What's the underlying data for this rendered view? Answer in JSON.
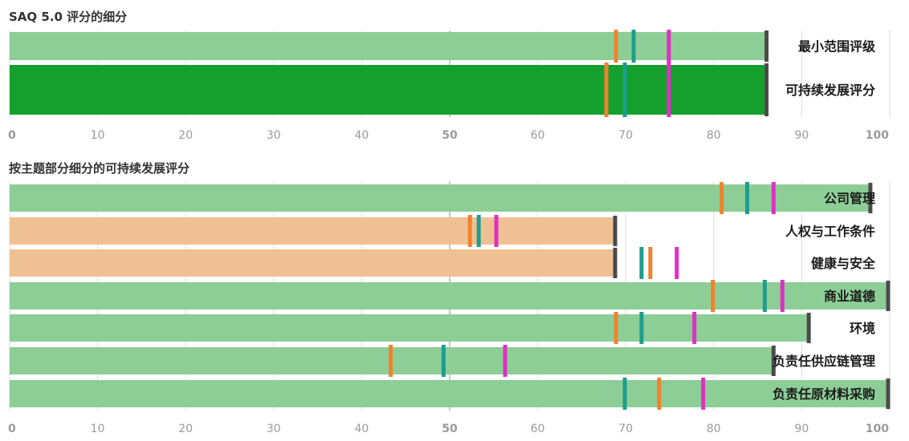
{
  "chart_data": [
    {
      "type": "bar",
      "title": "SAQ 5.0 评分的细分",
      "orientation": "horizontal",
      "xlim": [
        0,
        100
      ],
      "ticks": [
        0,
        10,
        20,
        30,
        40,
        50,
        60,
        70,
        80,
        90,
        100
      ],
      "grid": true,
      "categories": [
        "最小范围评级",
        "可持续发展评分"
      ],
      "values": [
        86,
        86
      ],
      "bar_colors": [
        "#8dce96",
        "#15a02e"
      ],
      "markers": [
        {
          "orange": 68.9,
          "teal": 70.9,
          "magenta": 74.9
        },
        {
          "orange": 67.8,
          "teal": 69.9,
          "magenta": 74.9
        }
      ],
      "marker_colors": {
        "orange": "#f0822e",
        "teal": "#1e9c8e",
        "magenta": "#df2fc4",
        "end": "#4a4a4a"
      }
    },
    {
      "type": "bar",
      "title": "按主题部分细分的可持续发展评分",
      "orientation": "horizontal",
      "xlim": [
        0,
        100
      ],
      "ticks": [
        0,
        10,
        20,
        30,
        40,
        50,
        60,
        70,
        80,
        90,
        100
      ],
      "grid": true,
      "categories": [
        "公司管理",
        "人权与工作条件",
        "健康与安全",
        "商业道德",
        "环境",
        "负责任供应链管理",
        "负责任原材料采购"
      ],
      "values": [
        97.8,
        68.8,
        68.8,
        100,
        90.8,
        86.8,
        100
      ],
      "bar_colors": [
        "#8dce96",
        "#f0c095",
        "#f0c095",
        "#8dce96",
        "#8dce96",
        "#8dce96",
        "#8dce96"
      ],
      "markers": [
        {
          "orange": 80.9,
          "teal": 83.8,
          "magenta": 86.8
        },
        {
          "orange": 52.3,
          "teal": 53.3,
          "magenta": 55.3
        },
        {
          "orange": 72.8,
          "teal": 71.8,
          "magenta": 75.8
        },
        {
          "orange": 79.9,
          "teal": 85.8,
          "magenta": 87.8
        },
        {
          "orange": 68.9,
          "teal": 71.8,
          "magenta": 77.8
        },
        {
          "orange": 43.3,
          "teal": 49.3,
          "magenta": 56.3
        },
        {
          "orange": 73.8,
          "teal": 69.9,
          "magenta": 78.8
        }
      ],
      "marker_colors": {
        "orange": "#f0822e",
        "teal": "#1e9c8e",
        "magenta": "#df2fc4",
        "end": "#4a4a4a"
      }
    }
  ]
}
